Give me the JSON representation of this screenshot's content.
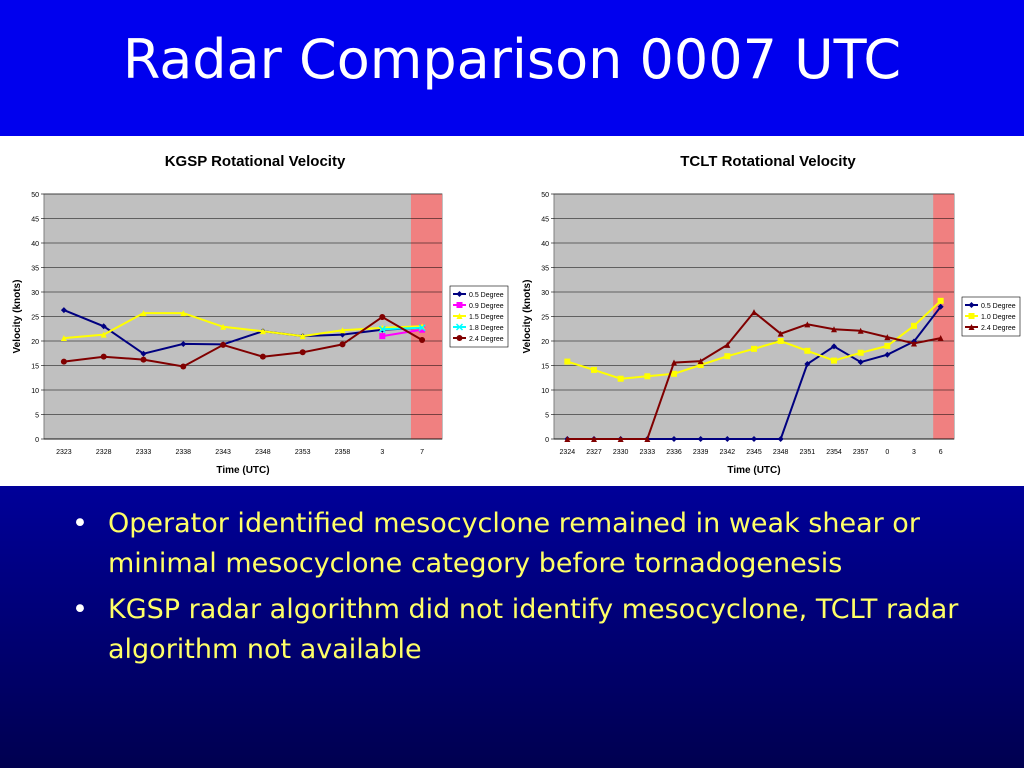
{
  "slide": {
    "title": "Radar Comparison 0007 UTC",
    "bullets": [
      "Operator identified mesocyclone remained in weak shear or minimal mesocyclone category before tornadogenesis",
      "KGSP radar algorithm did not identify mesocyclone, TCLT radar algorithm not available"
    ]
  },
  "colors": {
    "title_bg": "#0000ee",
    "text": "#ffff66",
    "plot_bg": "#c0c0c0",
    "highlight": "#f08080"
  },
  "chart_data": [
    {
      "type": "line",
      "title": "KGSP Rotational Velocity",
      "xlabel": "Time (UTC)",
      "ylabel": "Velocity (knots)",
      "ylim": [
        0,
        50
      ],
      "yticks": [
        0,
        5,
        10,
        15,
        20,
        25,
        30,
        35,
        40,
        45,
        50
      ],
      "categories": [
        "2323",
        "2328",
        "2333",
        "2338",
        "2343",
        "2348",
        "2353",
        "2358",
        "3",
        "7"
      ],
      "grid": true,
      "legend": "right",
      "highlight_last_category": true,
      "series": [
        {
          "name": "0.5 Degree",
          "color": "#000080",
          "marker": "diamond",
          "values": [
            26.3,
            23,
            17.4,
            19.4,
            19.3,
            22,
            21,
            21.3,
            22.3,
            22.7
          ]
        },
        {
          "name": "0.9 Degree",
          "color": "#ff00ff",
          "marker": "square",
          "values": [
            null,
            null,
            null,
            null,
            null,
            null,
            null,
            null,
            21,
            22.3
          ]
        },
        {
          "name": "1.5 Degree",
          "color": "#ffff00",
          "marker": "triangle",
          "values": [
            20.6,
            21.3,
            25.7,
            25.7,
            22.9,
            22,
            21,
            22.2,
            22.7,
            23
          ]
        },
        {
          "name": "1.8 Degree",
          "color": "#00ffff",
          "marker": "x",
          "values": [
            null,
            null,
            null,
            null,
            null,
            null,
            null,
            null,
            22.4,
            22.7
          ]
        },
        {
          "name": "2.4 Degree",
          "color": "#800000",
          "marker": "circle",
          "values": [
            15.8,
            16.8,
            16.2,
            14.8,
            19.2,
            16.8,
            17.7,
            19.3,
            24.9,
            20.2
          ]
        }
      ]
    },
    {
      "type": "line",
      "title": "TCLT Rotational Velocity",
      "xlabel": "Time (UTC)",
      "ylabel": "Velocity (knots)",
      "ylim": [
        0,
        50
      ],
      "yticks": [
        0,
        5,
        10,
        15,
        20,
        25,
        30,
        35,
        40,
        45,
        50
      ],
      "categories": [
        "2324",
        "2327",
        "2330",
        "2333",
        "2336",
        "2339",
        "2342",
        "2345",
        "2348",
        "2351",
        "2354",
        "2357",
        "0",
        "3",
        "6"
      ],
      "grid": true,
      "legend": "right",
      "highlight_last_category": true,
      "series": [
        {
          "name": "0.5 Degree",
          "color": "#000080",
          "marker": "diamond",
          "values": [
            0,
            0,
            0,
            0,
            0,
            0,
            0,
            0,
            0,
            15.3,
            18.9,
            15.7,
            17.2,
            19.9,
            27
          ]
        },
        {
          "name": "1.0 Degree",
          "color": "#ffff00",
          "marker": "square",
          "values": [
            15.8,
            14.1,
            12.3,
            12.8,
            13.3,
            15.1,
            16.9,
            18.4,
            20,
            18,
            16,
            17.6,
            19,
            23.1,
            28.2
          ]
        },
        {
          "name": "2.4 Degree",
          "color": "#800000",
          "marker": "triangle",
          "values": [
            0,
            0,
            0,
            0,
            15.6,
            15.9,
            19.2,
            25.9,
            21.5,
            23.4,
            22.4,
            22.1,
            20.8,
            19.5,
            20.6
          ]
        }
      ]
    }
  ]
}
